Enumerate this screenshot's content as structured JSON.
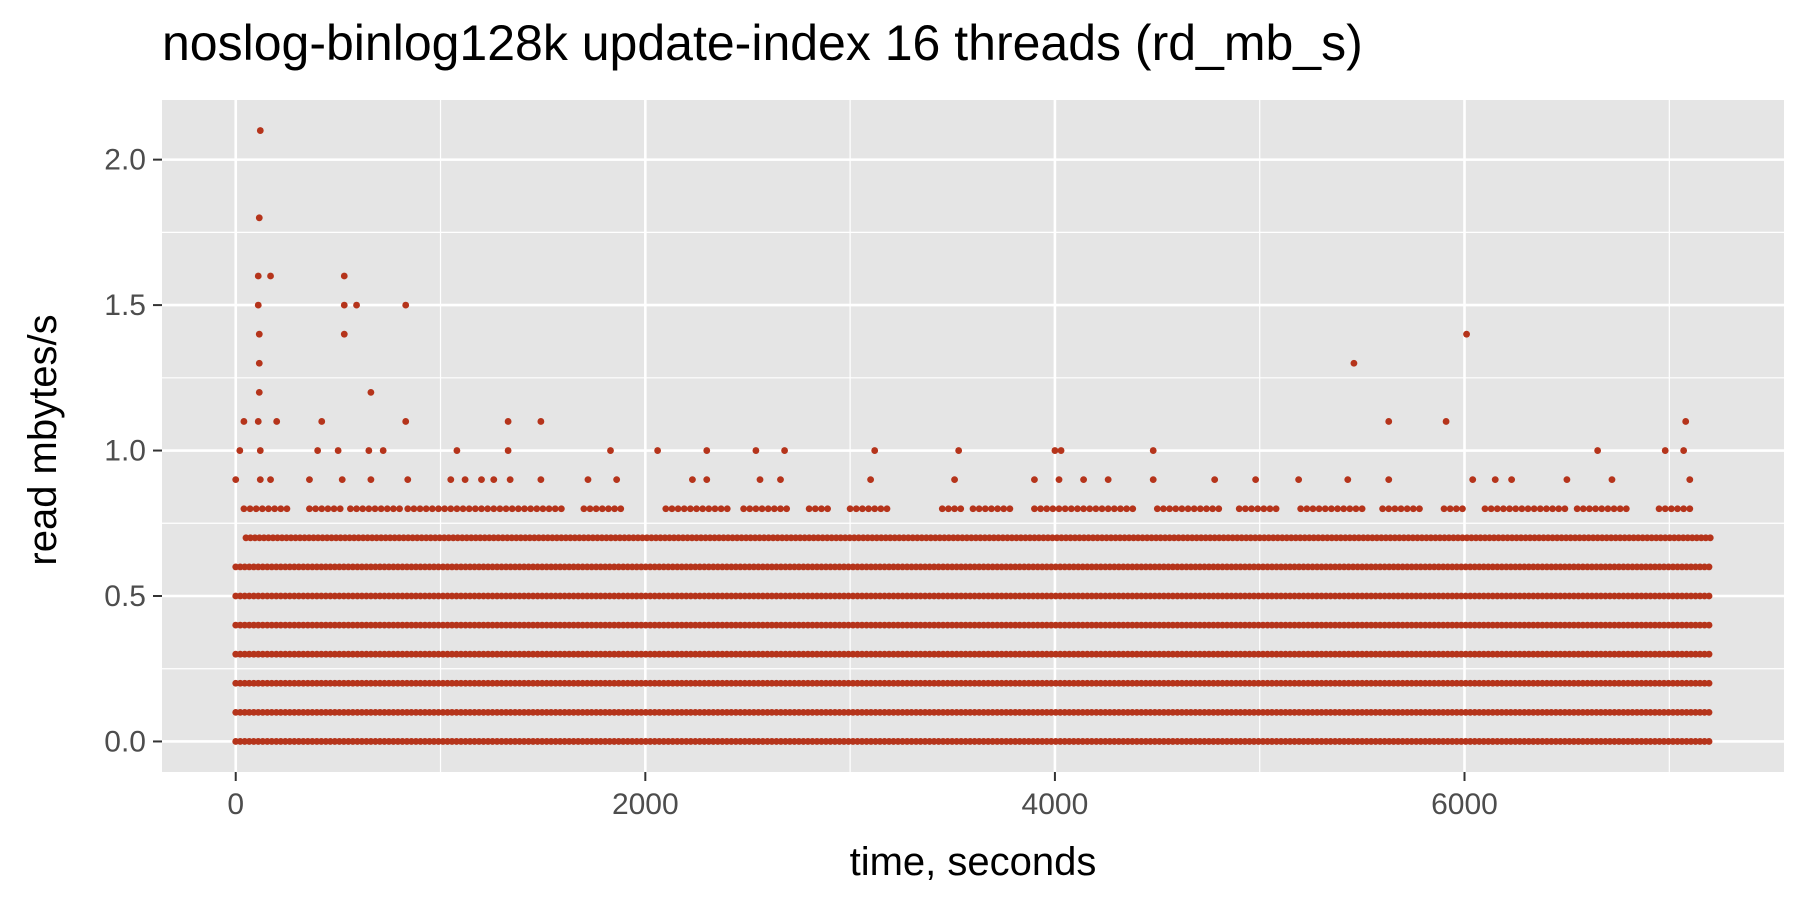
{
  "chart_data": {
    "type": "scatter",
    "title": "noslog-binlog128k update-index 16 threads (rd_mb_s)",
    "xlabel": "time, seconds",
    "ylabel": "read mbytes/s",
    "xlim": [
      -360,
      7560
    ],
    "ylim": [
      -0.105,
      2.205
    ],
    "x_ticks": [
      0,
      2000,
      4000,
      6000
    ],
    "x_tick_labels": [
      "0",
      "2000",
      "4000",
      "6000"
    ],
    "y_ticks": [
      0.0,
      0.5,
      1.0,
      1.5,
      2.0
    ],
    "y_tick_labels": [
      "0.0",
      "0.5",
      "1.0",
      "1.5",
      "2.0"
    ],
    "grid": true,
    "background": "#e5e5e5",
    "grid_color": "#ffffff",
    "point_color": "#b5341b",
    "bands": [
      {
        "y": 0.0,
        "x_start": 0,
        "x_end": 7200
      },
      {
        "y": 0.1,
        "x_start": 0,
        "x_end": 7200
      },
      {
        "y": 0.2,
        "x_start": 0,
        "x_end": 7200
      },
      {
        "y": 0.3,
        "x_start": 0,
        "x_end": 7200
      },
      {
        "y": 0.4,
        "x_start": 0,
        "x_end": 7200
      },
      {
        "y": 0.5,
        "x_start": 0,
        "x_end": 7200
      },
      {
        "y": 0.6,
        "x_start": 0,
        "x_end": 7200
      },
      {
        "y": 0.7,
        "x_start": 50,
        "x_end": 7200
      }
    ],
    "points": [
      {
        "x": 120,
        "y": 2.1
      },
      {
        "x": 115,
        "y": 1.8
      },
      {
        "x": 110,
        "y": 1.6
      },
      {
        "x": 170,
        "y": 1.6
      },
      {
        "x": 530,
        "y": 1.6
      },
      {
        "x": 110,
        "y": 1.5
      },
      {
        "x": 530,
        "y": 1.5
      },
      {
        "x": 590,
        "y": 1.5
      },
      {
        "x": 830,
        "y": 1.5
      },
      {
        "x": 115,
        "y": 1.4
      },
      {
        "x": 530,
        "y": 1.4
      },
      {
        "x": 6010,
        "y": 1.4
      },
      {
        "x": 115,
        "y": 1.3
      },
      {
        "x": 5460,
        "y": 1.3
      },
      {
        "x": 115,
        "y": 1.2
      },
      {
        "x": 660,
        "y": 1.2
      },
      {
        "x": 40,
        "y": 1.1
      },
      {
        "x": 110,
        "y": 1.1
      },
      {
        "x": 200,
        "y": 1.1
      },
      {
        "x": 420,
        "y": 1.1
      },
      {
        "x": 830,
        "y": 1.1
      },
      {
        "x": 1330,
        "y": 1.1
      },
      {
        "x": 1490,
        "y": 1.1
      },
      {
        "x": 5630,
        "y": 1.1
      },
      {
        "x": 5910,
        "y": 1.1
      },
      {
        "x": 7080,
        "y": 1.1
      },
      {
        "x": 20,
        "y": 1.0
      },
      {
        "x": 120,
        "y": 1.0
      },
      {
        "x": 400,
        "y": 1.0
      },
      {
        "x": 500,
        "y": 1.0
      },
      {
        "x": 650,
        "y": 1.0
      },
      {
        "x": 720,
        "y": 1.0
      },
      {
        "x": 1080,
        "y": 1.0
      },
      {
        "x": 1330,
        "y": 1.0
      },
      {
        "x": 1830,
        "y": 1.0
      },
      {
        "x": 2060,
        "y": 1.0
      },
      {
        "x": 2300,
        "y": 1.0
      },
      {
        "x": 2540,
        "y": 1.0
      },
      {
        "x": 2680,
        "y": 1.0
      },
      {
        "x": 3120,
        "y": 1.0
      },
      {
        "x": 3530,
        "y": 1.0
      },
      {
        "x": 4000,
        "y": 1.0
      },
      {
        "x": 4030,
        "y": 1.0
      },
      {
        "x": 4480,
        "y": 1.0
      },
      {
        "x": 6650,
        "y": 1.0
      },
      {
        "x": 6980,
        "y": 1.0
      },
      {
        "x": 7070,
        "y": 1.0
      },
      {
        "x": 0,
        "y": 0.9
      },
      {
        "x": 120,
        "y": 0.9
      },
      {
        "x": 170,
        "y": 0.9
      },
      {
        "x": 360,
        "y": 0.9
      },
      {
        "x": 520,
        "y": 0.9
      },
      {
        "x": 660,
        "y": 0.9
      },
      {
        "x": 840,
        "y": 0.9
      },
      {
        "x": 1050,
        "y": 0.9
      },
      {
        "x": 1120,
        "y": 0.9
      },
      {
        "x": 1200,
        "y": 0.9
      },
      {
        "x": 1260,
        "y": 0.9
      },
      {
        "x": 1340,
        "y": 0.9
      },
      {
        "x": 1490,
        "y": 0.9
      },
      {
        "x": 1720,
        "y": 0.9
      },
      {
        "x": 1860,
        "y": 0.9
      },
      {
        "x": 2230,
        "y": 0.9
      },
      {
        "x": 2300,
        "y": 0.9
      },
      {
        "x": 2560,
        "y": 0.9
      },
      {
        "x": 2660,
        "y": 0.9
      },
      {
        "x": 3100,
        "y": 0.9
      },
      {
        "x": 3510,
        "y": 0.9
      },
      {
        "x": 3900,
        "y": 0.9
      },
      {
        "x": 4020,
        "y": 0.9
      },
      {
        "x": 4140,
        "y": 0.9
      },
      {
        "x": 4260,
        "y": 0.9
      },
      {
        "x": 4480,
        "y": 0.9
      },
      {
        "x": 4780,
        "y": 0.9
      },
      {
        "x": 4980,
        "y": 0.9
      },
      {
        "x": 5190,
        "y": 0.9
      },
      {
        "x": 5430,
        "y": 0.9
      },
      {
        "x": 5630,
        "y": 0.9
      },
      {
        "x": 6040,
        "y": 0.9
      },
      {
        "x": 6150,
        "y": 0.9
      },
      {
        "x": 6230,
        "y": 0.9
      },
      {
        "x": 6500,
        "y": 0.9
      },
      {
        "x": 6720,
        "y": 0.9
      },
      {
        "x": 7100,
        "y": 0.9
      }
    ],
    "points_0_8": {
      "y": 0.8,
      "segments": [
        [
          40,
          260
        ],
        [
          360,
          510
        ],
        [
          560,
          800
        ],
        [
          840,
          1600
        ],
        [
          1700,
          1900
        ],
        [
          2100,
          2400
        ],
        [
          2480,
          2700
        ],
        [
          2800,
          2900
        ],
        [
          3000,
          3200
        ],
        [
          3450,
          3550
        ],
        [
          3600,
          3800
        ],
        [
          3900,
          4400
        ],
        [
          4500,
          4800
        ],
        [
          4900,
          5100
        ],
        [
          5200,
          5500
        ],
        [
          5600,
          5800
        ],
        [
          5900,
          6000
        ],
        [
          6100,
          6500
        ],
        [
          6550,
          6800
        ],
        [
          6950,
          7100
        ]
      ],
      "step": 30
    }
  }
}
